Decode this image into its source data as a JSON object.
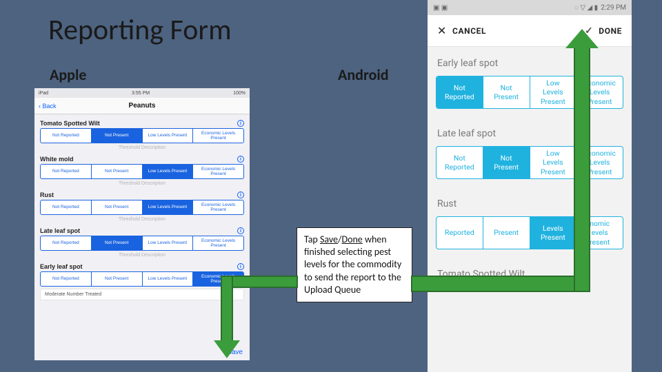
{
  "slide": {
    "title": "Reporting Form",
    "apple_label": "Apple",
    "android_label": "Android"
  },
  "callout": {
    "prefix": "Tap ",
    "save": "Save",
    "sep": "/",
    "done": "Done",
    "rest": " when finished selecting pest levels for the commodity to send the report to the Upload Queue"
  },
  "ios": {
    "status_left": "iPad",
    "status_center": "3:55 PM",
    "status_right": "100%",
    "back": "Back",
    "title": "Peanuts",
    "save": "Save",
    "threshold": "Threshold Description",
    "moderate": "Moderate Number Treated",
    "options": [
      "Not Reported",
      "Not Present",
      "Low Levels Present",
      "Economic Levels Present"
    ],
    "pests": [
      {
        "name": "Tomato Spotted Wilt",
        "selected": 1
      },
      {
        "name": "White mold",
        "selected": 2
      },
      {
        "name": "Rust",
        "selected": 2
      },
      {
        "name": "Late leaf spot",
        "selected": 1
      },
      {
        "name": "Early leaf spot",
        "selected": 3
      }
    ]
  },
  "android": {
    "time": "2:29 PM",
    "cancel": "CANCEL",
    "done": "DONE",
    "options": [
      "Not Reported",
      "Not Present",
      "Low Levels Present",
      "Economic Levels Present"
    ],
    "opt_short": [
      "Reported",
      "Present",
      "Levels Present",
      "nomic evels resent"
    ],
    "pests": [
      {
        "name": "Early leaf spot",
        "selected": 0
      },
      {
        "name": "Late leaf spot",
        "selected": 1
      },
      {
        "name": "Rust",
        "selected": 2
      },
      {
        "name": "Tomato Spotted Wilt",
        "selected": -1
      }
    ]
  },
  "colors": {
    "slide_bg": "#4d6380",
    "ios_blue": "#1a63e0",
    "android_teal": "#1fb2df",
    "arrow_fill": "#3b9c3b",
    "arrow_border": "#2b6e2b"
  }
}
